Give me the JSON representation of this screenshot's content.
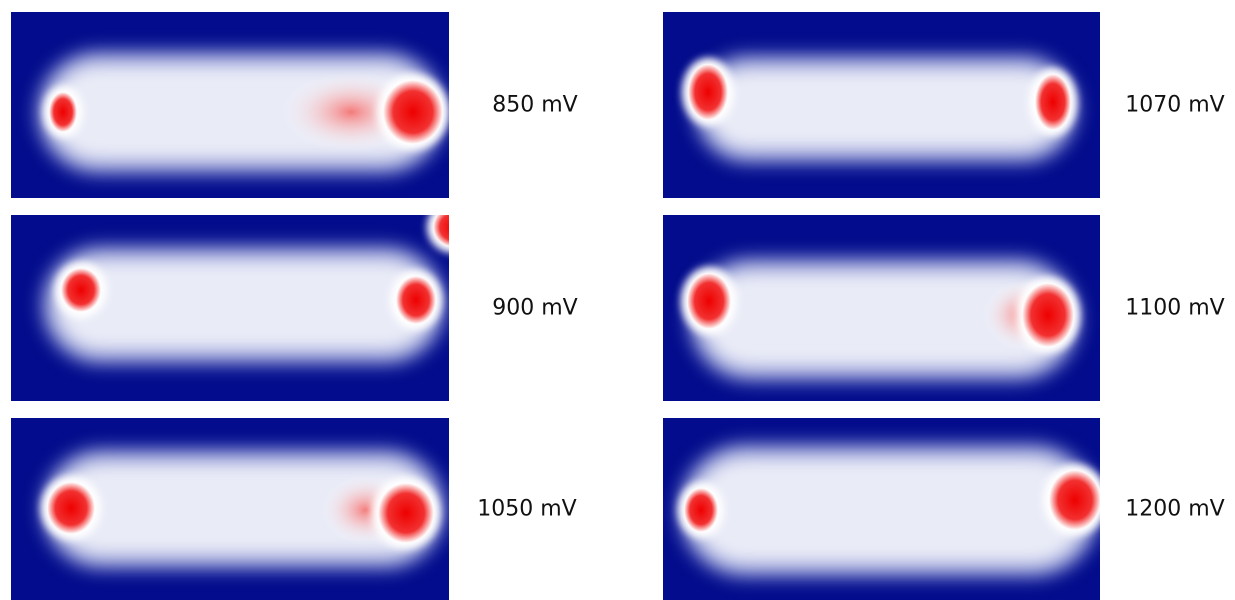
{
  "panels": [
    {
      "label": "850 mV"
    },
    {
      "label": "900 mV"
    },
    {
      "label": "1050 mV"
    },
    {
      "label": "1070 mV"
    },
    {
      "label": "1100 mV"
    },
    {
      "label": "1200 mV"
    }
  ]
}
